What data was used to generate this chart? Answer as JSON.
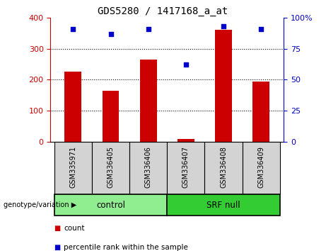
{
  "title": "GDS5280 / 1417168_a_at",
  "categories": [
    "GSM335971",
    "GSM336405",
    "GSM336406",
    "GSM336407",
    "GSM336408",
    "GSM336409"
  ],
  "bar_values": [
    225,
    165,
    265,
    10,
    360,
    195
  ],
  "scatter_values": [
    91,
    87,
    91,
    62,
    93,
    91
  ],
  "bar_color": "#cc0000",
  "scatter_color": "#0000cc",
  "left_ylim": [
    0,
    400
  ],
  "right_ylim": [
    0,
    100
  ],
  "left_yticks": [
    0,
    100,
    200,
    300,
    400
  ],
  "right_yticks": [
    0,
    25,
    50,
    75,
    100
  ],
  "right_yticklabels": [
    "0",
    "25",
    "50",
    "75",
    "100%"
  ],
  "grid_values": [
    100,
    200,
    300
  ],
  "groups": [
    {
      "label": "control",
      "indices": [
        0,
        1,
        2
      ],
      "color": "#90ee90"
    },
    {
      "label": "SRF null",
      "indices": [
        3,
        4,
        5
      ],
      "color": "#33cc33"
    }
  ],
  "group_row_label": "genotype/variation",
  "legend_items": [
    {
      "label": "count",
      "color": "#cc0000"
    },
    {
      "label": "percentile rank within the sample",
      "color": "#0000cc"
    }
  ],
  "tick_label_bg": "#d3d3d3",
  "left_axis_color": "#cc0000",
  "right_axis_color": "#0000cc",
  "bar_width": 0.45
}
